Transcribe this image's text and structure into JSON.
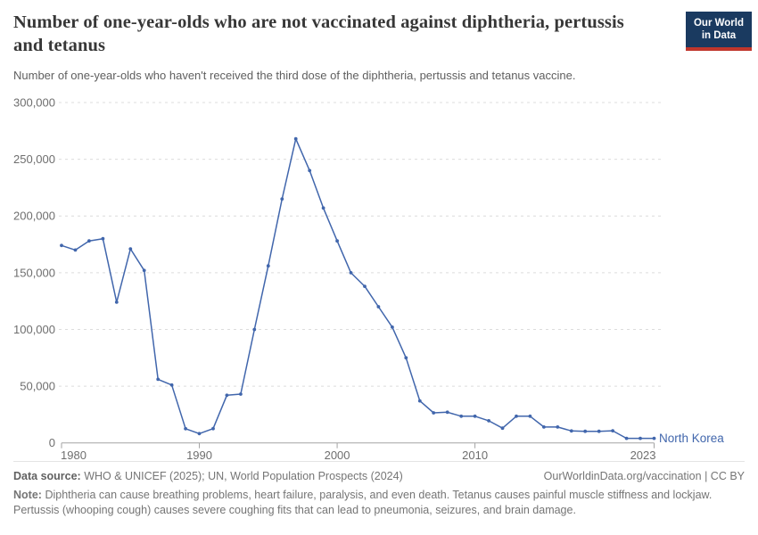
{
  "header": {
    "title": "Number of one-year-olds who are not vaccinated against diphtheria, pertussis and tetanus",
    "subtitle": "Number of one-year-olds who haven't received the third dose of the diphtheria, pertussis and tetanus vaccine.",
    "logo": {
      "line1": "Our World",
      "line2": "in Data",
      "bg_color": "#1a3a60",
      "accent_color": "#c0362c"
    }
  },
  "chart_data": {
    "type": "line",
    "title": "Number of one-year-olds who are not vaccinated against diphtheria, pertussis and tetanus",
    "xlabel": "",
    "ylabel": "",
    "xlim": [
      1980,
      2023
    ],
    "ylim": [
      0,
      300000
    ],
    "x_ticks": [
      1980,
      1990,
      2000,
      2010,
      2023
    ],
    "y_ticks": [
      0,
      50000,
      100000,
      150000,
      200000,
      250000,
      300000
    ],
    "grid": "horizontal-dashed",
    "legend_position": "end-of-line-label",
    "entity_label": "North Korea",
    "line_color": "#4166ac",
    "axis_color": "#a3a3a3",
    "grid_color": "#dcdcdc",
    "tick_label_color": "#6e6e6e",
    "series": [
      {
        "name": "North Korea",
        "points": [
          [
            1980,
            174000
          ],
          [
            1981,
            170000
          ],
          [
            1982,
            178000
          ],
          [
            1983,
            180000
          ],
          [
            1984,
            124000
          ],
          [
            1985,
            171000
          ],
          [
            1986,
            152000
          ],
          [
            1987,
            56000
          ],
          [
            1988,
            51000
          ],
          [
            1989,
            12500
          ],
          [
            1990,
            8200
          ],
          [
            1991,
            12600
          ],
          [
            1992,
            42000
          ],
          [
            1993,
            43000
          ],
          [
            1994,
            100000
          ],
          [
            1995,
            156000
          ],
          [
            1996,
            215000
          ],
          [
            1997,
            268000
          ],
          [
            1998,
            240000
          ],
          [
            1999,
            207000
          ],
          [
            2000,
            178000
          ],
          [
            2001,
            150000
          ],
          [
            2002,
            138000
          ],
          [
            2003,
            120000
          ],
          [
            2004,
            102000
          ],
          [
            2005,
            75000
          ],
          [
            2006,
            37000
          ],
          [
            2007,
            26500
          ],
          [
            2008,
            27000
          ],
          [
            2009,
            23500
          ],
          [
            2010,
            23500
          ],
          [
            2011,
            19500
          ],
          [
            2012,
            13000
          ],
          [
            2013,
            23500
          ],
          [
            2014,
            23500
          ],
          [
            2015,
            14000
          ],
          [
            2016,
            14000
          ],
          [
            2017,
            10500
          ],
          [
            2018,
            10200
          ],
          [
            2019,
            10200
          ],
          [
            2020,
            10700
          ],
          [
            2021,
            4000
          ],
          [
            2022,
            4000
          ],
          [
            2023,
            4000
          ]
        ]
      }
    ]
  },
  "footer": {
    "datasource_label": "Data source:",
    "datasource": "WHO & UNICEF (2025); UN, World Population Prospects (2024)",
    "attribution_url": "OurWorldinData.org/vaccination",
    "attribution_separator": "|",
    "attribution_license": "CC BY",
    "note_label": "Note:",
    "note": "Diphtheria can cause breathing problems, heart failure, paralysis, and even death. Tetanus causes painful muscle stiffness and lockjaw. Pertussis (whooping cough) causes severe coughing fits that can lead to pneumonia, seizures, and brain damage."
  }
}
